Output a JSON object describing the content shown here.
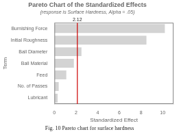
{
  "chart_data": {
    "type": "bar",
    "orientation": "horizontal",
    "title": "Pareto Chart of the Standardized Effects",
    "subtitle": "(response is Surface Hardness, Alpha = .05)",
    "caption": "Fig. 10 Pareto chart for surface hardness",
    "categories": [
      "Burnishing Force",
      "Initial Roughness",
      "Ball Diameter",
      "Ball Material",
      "Feed",
      "No. of Passes",
      "Lubricant"
    ],
    "values": [
      10.2,
      8.5,
      2.5,
      1.8,
      1.1,
      0.4,
      0.3
    ],
    "color": "#d3d3d3",
    "xlabel": "Standardized Effect",
    "ylabel": "Term",
    "xlim": [
      0,
      11
    ],
    "xticks": [
      0,
      2,
      4,
      6,
      8,
      10
    ],
    "annotations": [
      {
        "x": 2.12,
        "label": "2.12",
        "color": "#cc0000"
      }
    ],
    "grid": false
  }
}
